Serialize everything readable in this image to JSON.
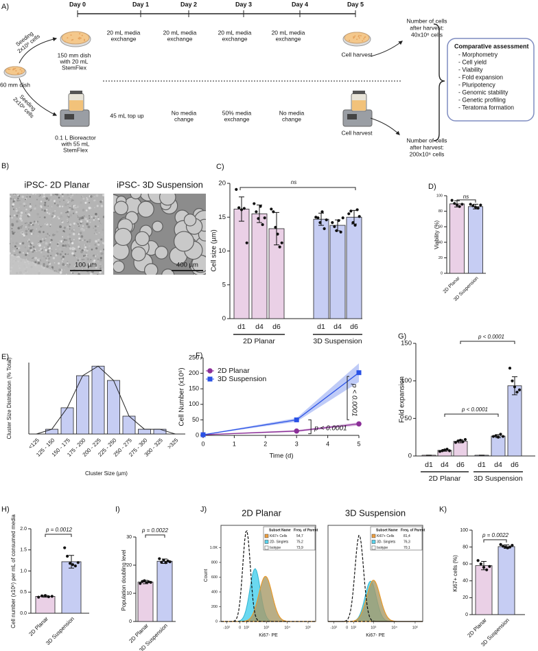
{
  "panel_a": {
    "label": "A)",
    "days": [
      "Day 0",
      "Day 1",
      "Day 2",
      "Day 3",
      "Day 4",
      "Day 5"
    ],
    "start": "60 mm dish",
    "planar": {
      "seeding": [
        "Seeding",
        "2x10⁶ cells"
      ],
      "vessel": [
        "150 mm dish",
        "with 20 mL",
        "StemFlex"
      ],
      "steps": [
        [
          "20 mL media",
          "exchange"
        ],
        [
          "20 mL media",
          "exchange"
        ],
        [
          "20 mL media",
          "exchange"
        ],
        [
          "20 mL media",
          "exchange"
        ]
      ],
      "harvest": "Cell harvest",
      "result": [
        "Number of cells",
        "after harvest:",
        "40x10⁶ cells"
      ]
    },
    "suspension": {
      "seeding": [
        "Seeding",
        "2x10⁶ cells"
      ],
      "vessel": [
        "0.1 L Bioreactor",
        "with 55 mL",
        "StemFlex"
      ],
      "steps": [
        [
          "45 mL top up"
        ],
        [
          "No media",
          "change"
        ],
        [
          "50% media",
          "exchange"
        ],
        [
          "No media",
          "change"
        ]
      ],
      "harvest": "Cell harvest",
      "result": [
        "Number of cells",
        "after harvest:",
        "200x10⁶ cells"
      ]
    },
    "assessment": {
      "title": "Comparative assessment",
      "items": [
        "- Morphometry",
        "- Cell yield",
        "- Viability",
        "- Fold expansion",
        "- Pluripotency",
        "- Genomic stability",
        "- Genetic profiling",
        "- Teratoma formation"
      ]
    }
  },
  "panel_b": {
    "label": "B)",
    "images": [
      {
        "title": "iPSC- 2D Planar",
        "scale_bar": "100 µm"
      },
      {
        "title": "iPSC- 3D Suspension",
        "scale_bar": "400 µm"
      }
    ]
  },
  "chart_data": [
    {
      "label": "C)",
      "type": "bar",
      "ylabel": "Cell size (µm)",
      "categories": [
        "d1",
        "d4",
        "d6",
        "d1",
        "d4",
        "d6"
      ],
      "groups": [
        "2D Planar",
        "3D Suspension"
      ],
      "values": [
        16.2,
        15.5,
        13.3,
        14.7,
        13.8,
        15.0
      ],
      "errors": [
        1.8,
        1.3,
        2.4,
        0.9,
        0.8,
        1.0
      ],
      "points": [
        [
          19.1,
          16.4,
          16.1,
          16.3,
          11.2
        ],
        [
          17.0,
          15.8,
          14.8,
          16.6,
          13.9,
          14.9
        ],
        [
          16.2,
          15.8,
          13.5,
          12.5,
          10.6,
          11.2
        ],
        [
          15.0,
          14.9,
          14.2,
          15.8,
          13.3,
          14.6
        ],
        [
          14.2,
          13.6,
          13.0,
          14.5,
          12.8,
          14.9
        ],
        [
          15.5,
          15.9,
          14.2,
          13.8,
          16.1,
          15.1
        ]
      ],
      "colors": [
        "#ead0e6",
        "#ead0e6",
        "#ead0e6",
        "#c6cdf3",
        "#c6cdf3",
        "#c6cdf3"
      ],
      "ylim": [
        0,
        20
      ],
      "yticks": [
        0,
        5,
        10,
        15,
        20
      ],
      "annotations": [
        "ns"
      ]
    },
    {
      "label": "D)",
      "type": "bar",
      "ylabel": "Viability (%)",
      "categories": [
        "2D Planar",
        "3D Suspension"
      ],
      "values": [
        89.5,
        86
      ],
      "errors": [
        4,
        3
      ],
      "points": [
        [
          94,
          90,
          88,
          86,
          89
        ],
        [
          89,
          87,
          85,
          84,
          88
        ]
      ],
      "colors": [
        "#ead0e6",
        "#c6cdf3"
      ],
      "ylim": [
        0,
        100
      ],
      "yticks": [
        0,
        20,
        40,
        60,
        80,
        100
      ],
      "annotations": [
        "ns"
      ]
    },
    {
      "label": "E)",
      "type": "bar",
      "ylabel": "Cluster Size Distribution (% Total)",
      "xlabel": "Cluster Size (µm)",
      "categories": [
        "<125",
        "125 - 150",
        "150 - 175",
        "175 - 200",
        "200 - 225",
        "225 - 250",
        "250 - 275",
        "275 - 300",
        "300 - 325",
        ">325"
      ],
      "values": [
        0,
        2,
        11,
        24.5,
        28.5,
        22.5,
        7.5,
        2,
        2,
        0
      ],
      "color": "#c6cdf3",
      "ylim": [
        0,
        30
      ],
      "annotations": []
    },
    {
      "label": "F)",
      "type": "line",
      "ylabel": "Cell Number (x10⁶)",
      "xlabel": "Time (d)",
      "xlim": [
        0,
        5
      ],
      "xticks": [
        0,
        1,
        2,
        3,
        4,
        5
      ],
      "ylim": [
        0,
        250
      ],
      "yticks": [
        0,
        50,
        100,
        150,
        200,
        250
      ],
      "legend": "upper left",
      "series": [
        {
          "name": "2D Planar",
          "color": "#8b2f98",
          "marker": "circle",
          "x": [
            0,
            3,
            5
          ],
          "values": [
            2,
            14,
            37
          ],
          "lower": [
            1,
            11,
            32
          ],
          "upper": [
            3,
            17,
            42
          ]
        },
        {
          "name": "3D Suspension",
          "color": "#2a52e6",
          "marker": "square",
          "x": [
            0,
            3,
            5
          ],
          "values": [
            2,
            50,
            202
          ],
          "lower": [
            1,
            44,
            172
          ],
          "upper": [
            3,
            56,
            232
          ]
        }
      ],
      "annotations": [
        "p < 0.0001",
        "p < 0.0001"
      ]
    },
    {
      "label": "G)",
      "type": "bar",
      "ylabel": "Fold expansion",
      "categories": [
        "d1",
        "d4",
        "d6",
        "d1",
        "d4",
        "d6"
      ],
      "groups": [
        "2D Planar",
        "3D Suspension"
      ],
      "values": [
        1,
        7.5,
        19.5,
        1,
        26.5,
        93.5
      ],
      "errors": [
        0.1,
        1.2,
        2,
        0.1,
        2,
        12
      ],
      "points": [
        [],
        [
          6,
          7,
          8,
          9,
          7
        ],
        [
          18,
          20,
          21,
          19,
          22
        ],
        [],
        [
          26,
          27,
          25,
          29,
          26
        ],
        [
          117,
          100,
          92,
          85,
          88
        ]
      ],
      "colors": [
        "#ead0e6",
        "#ead0e6",
        "#ead0e6",
        "#c6cdf3",
        "#c6cdf3",
        "#c6cdf3"
      ],
      "ylim": [
        0,
        150
      ],
      "yticks": [
        0,
        50,
        100,
        150
      ],
      "annotations": [
        "p < 0.0001",
        "p < 0.0001"
      ]
    },
    {
      "label": "H)",
      "type": "bar",
      "ylabel": "Cell number (x10⁶) per mL of consumed media",
      "categories": [
        "2D Planar",
        "3D Suspension"
      ],
      "values": [
        0.4,
        1.22
      ],
      "errors": [
        0.02,
        0.15
      ],
      "points": [
        [
          0.38,
          0.41,
          0.42,
          0.39,
          0.4
        ],
        [
          1.55,
          1.35,
          1.18,
          1.15,
          1.12,
          1.2
        ]
      ],
      "colors": [
        "#ead0e6",
        "#c6cdf3"
      ],
      "ylim": [
        0,
        2
      ],
      "yticks": [
        {
          "value": 0,
          "label": "0.0"
        },
        {
          "value": 0.5,
          "label": "0.5"
        },
        {
          "value": 1,
          "label": "1.0"
        },
        {
          "value": 1.5,
          "label": "1.5"
        },
        {
          "value": 2,
          "label": "2.0"
        }
      ],
      "annotations": [
        "p = 0.0012"
      ]
    },
    {
      "label": "I)",
      "type": "bar",
      "ylabel": "Population doubling level",
      "categories": [
        "2D Planar",
        "3D Suspension"
      ],
      "values": [
        14,
        21.4
      ],
      "errors": [
        0.6,
        0.8
      ],
      "points": [
        [
          13.5,
          14.2,
          14.5,
          13.8,
          14.1,
          13.9
        ],
        [
          22.3,
          21.0,
          21.8,
          20.9,
          21.5,
          21.2
        ]
      ],
      "colors": [
        "#ead0e6",
        "#c6cdf3"
      ],
      "ylim": [
        0,
        30
      ],
      "yticks": [
        0,
        10,
        20,
        30
      ],
      "annotations": [
        "p = 0.0022"
      ]
    },
    {
      "label": "K)",
      "type": "bar",
      "ylabel": "Ki67+ cells (%)",
      "categories": [
        "2D Planar",
        "3D Suspension"
      ],
      "values": [
        58,
        80.5
      ],
      "errors": [
        5,
        2
      ],
      "points": [
        [
          64,
          60,
          56,
          53,
          57
        ],
        [
          83,
          81,
          80,
          79,
          80,
          82
        ]
      ],
      "colors": [
        "#ead0e6",
        "#c6cdf3"
      ],
      "ylim": [
        0,
        100
      ],
      "yticks": [
        0,
        20,
        40,
        60,
        80,
        100
      ],
      "annotations": [
        "p = 0.0022"
      ]
    }
  ],
  "panel_j": {
    "label": "J)",
    "ylabel": "Count",
    "xlabel": "Ki67- PE",
    "yticks": [
      "0",
      "200",
      "400",
      "600",
      "800",
      "1.0K"
    ],
    "xticks": [
      "-10²",
      "0",
      "10²",
      "10³",
      "10⁴",
      "10⁵"
    ],
    "table_header": [
      "Subset Name",
      "Freq. of Parent"
    ],
    "plots": [
      {
        "title": "2D Planar",
        "rows": [
          [
            "Ki67+ Cells",
            "54,7"
          ],
          [
            "2D- Singlets",
            "75,2"
          ],
          [
            "Isotype",
            "73,9"
          ]
        ]
      },
      {
        "title": "3D Suspension",
        "rows": [
          [
            "Ki67+ Cells",
            "81,4"
          ],
          [
            "3D- Singlets",
            "76,3"
          ],
          [
            "Isotype",
            "70,1"
          ]
        ]
      }
    ]
  }
}
